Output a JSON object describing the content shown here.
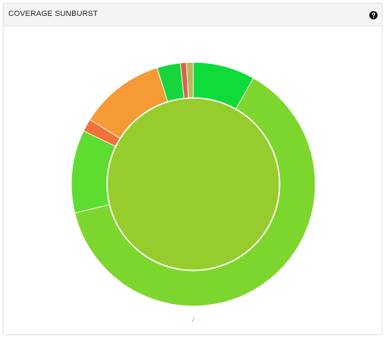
{
  "panel": {
    "title": "COVERAGE SUNBURST",
    "help_icon": "question-circle-icon"
  },
  "breadcrumb": "/",
  "colors": {
    "ring_stroke": "#ffffff",
    "header_bg": "#f4f4f4"
  },
  "chart_data": {
    "type": "sunburst",
    "title": "",
    "root": {
      "value": 100,
      "color": "#96cd2c"
    },
    "outer_ring": [
      {
        "start_fraction": 0.0,
        "end_fraction": 0.082,
        "color": "#0fdc3a"
      },
      {
        "start_fraction": 0.082,
        "end_fraction": 0.712,
        "color": "#7dd62e"
      },
      {
        "start_fraction": 0.712,
        "end_fraction": 0.822,
        "color": "#5edc2f"
      },
      {
        "start_fraction": 0.822,
        "end_fraction": 0.839,
        "color": "#f4713a"
      },
      {
        "start_fraction": 0.839,
        "end_fraction": 0.952,
        "color": "#f59a35"
      },
      {
        "start_fraction": 0.952,
        "end_fraction": 0.983,
        "color": "#16d63c"
      },
      {
        "start_fraction": 0.983,
        "end_fraction": 0.991,
        "color": "#d9624a"
      },
      {
        "start_fraction": 0.991,
        "end_fraction": 1.0,
        "color": "#b9b95a"
      }
    ]
  }
}
